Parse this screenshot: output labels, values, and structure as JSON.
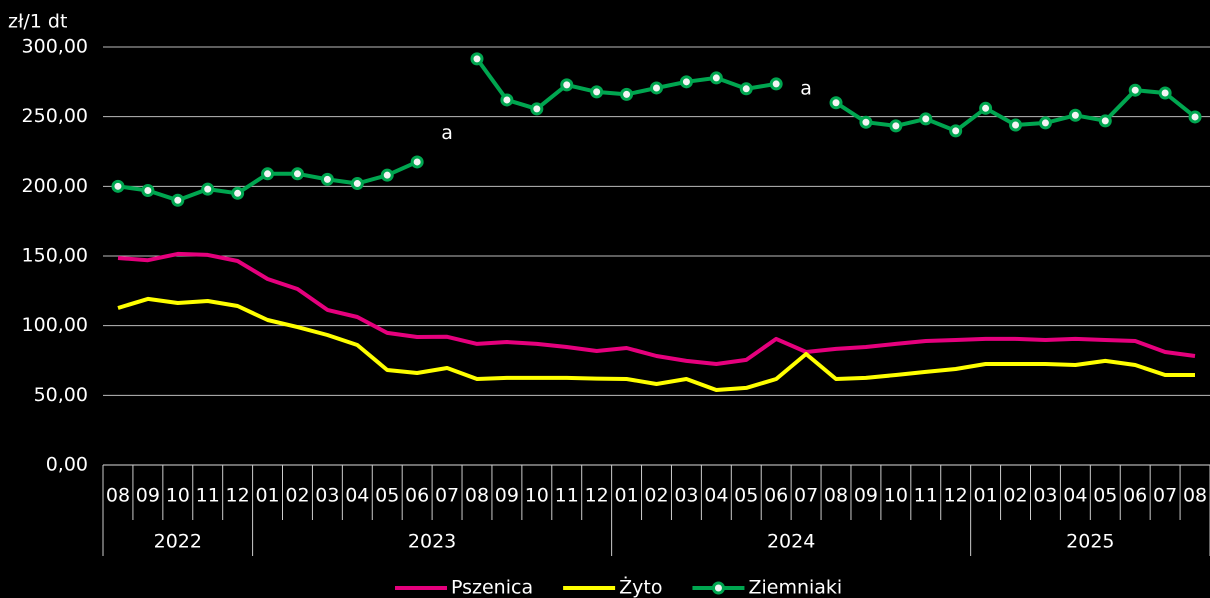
{
  "chart_data": {
    "type": "line",
    "y_label": "zł/1 dt",
    "groups": [
      {
        "label": "2022",
        "categories": [
          "08",
          "09",
          "10",
          "11",
          "12"
        ]
      },
      {
        "label": "2023",
        "categories": [
          "01",
          "02",
          "03",
          "04",
          "05",
          "06",
          "07",
          "08",
          "09",
          "10",
          "11",
          "12"
        ]
      },
      {
        "label": "2024",
        "categories": [
          "01",
          "02",
          "03",
          "04",
          "05",
          "06",
          "07",
          "08",
          "09",
          "10",
          "11",
          "12"
        ]
      },
      {
        "label": "2025",
        "categories": [
          "01",
          "02",
          "03",
          "04",
          "05",
          "06",
          "07",
          "08"
        ]
      }
    ],
    "series": [
      {
        "name": "Pszenica",
        "color": "#e5007d",
        "marker": false,
        "values": [
          148.6,
          147,
          151.5,
          150.8,
          146.4,
          133.5,
          126.3,
          111.3,
          106.2,
          94.8,
          91.9,
          92,
          86.9,
          88.3,
          86.9,
          84.7,
          81.8,
          84,
          78.2,
          74.7,
          72.5,
          75.4,
          90.5,
          81.1,
          83.3,
          84.7,
          86.9,
          89,
          89.7,
          90.5,
          90.5,
          89.7,
          90.5,
          89.7,
          89,
          81.1,
          78.2
        ]
      },
      {
        "name": "Żyto",
        "color": "#ffff00",
        "marker": false,
        "values": [
          112.7,
          119.2,
          116.3,
          117.7,
          114.1,
          104.1,
          99,
          93.3,
          86.1,
          68.2,
          66,
          69.6,
          61.7,
          62.5,
          62.5,
          62.5,
          62,
          61.7,
          58.1,
          61.7,
          53.8,
          55.3,
          61.7,
          79.7,
          61.7,
          62.5,
          64.6,
          66.8,
          68.9,
          72.5,
          72.5,
          72.5,
          71.8,
          74.7,
          71.8,
          64.6,
          64.6
        ]
      },
      {
        "name": "Ziemniaki",
        "color": "#00a650",
        "marker": true,
        "values": [
          200,
          197,
          190,
          198,
          195,
          209,
          209,
          205,
          202,
          208,
          217.5,
          null,
          291.5,
          262,
          255.6,
          272.8,
          267.8,
          266,
          270.6,
          275,
          277.8,
          270,
          273.5,
          null,
          260,
          246,
          243.4,
          248.4,
          239.8,
          256,
          244,
          245.5,
          251,
          247,
          269,
          267,
          249.8
        ]
      }
    ],
    "annotations": [
      {
        "text": "a",
        "index": 11,
        "y": 238
      },
      {
        "text": "a",
        "index": 23,
        "y": 270
      }
    ],
    "ylim": [
      0,
      300
    ],
    "yticks": [
      {
        "value": 0,
        "label": "0,00"
      },
      {
        "value": 50,
        "label": "50,00"
      },
      {
        "value": 100,
        "label": "100,00"
      },
      {
        "value": 150,
        "label": "150,00"
      },
      {
        "value": 200,
        "label": "200,00"
      },
      {
        "value": 250,
        "label": "250,00"
      },
      {
        "value": 300,
        "label": "300,00"
      }
    ],
    "grid": true
  }
}
